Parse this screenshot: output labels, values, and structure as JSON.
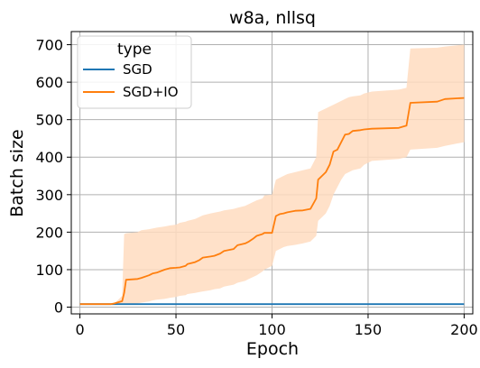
{
  "chart_data": {
    "type": "line",
    "title": "w8a, nllsq",
    "xlabel": "Epoch",
    "ylabel": "Batch size",
    "xlim": [
      -4.5,
      204.5
    ],
    "ylim": [
      -18,
      735
    ],
    "xticks": [
      0,
      50,
      100,
      150,
      200
    ],
    "yticks": [
      0,
      100,
      200,
      300,
      400,
      500,
      600,
      700
    ],
    "grid": true,
    "legend": {
      "title": "type",
      "placement": "top-left"
    },
    "series": [
      {
        "name": "SGD",
        "color": "#1f77b4",
        "x": [
          0,
          200
        ],
        "y": [
          8,
          8
        ]
      },
      {
        "name": "SGD+IO",
        "color": "#ff7f0e",
        "band_color": "#ffdcc0",
        "x": [
          0,
          16,
          18,
          22,
          23,
          24,
          30,
          32,
          36,
          38,
          40,
          44,
          47,
          50,
          52,
          55,
          56,
          60,
          62,
          64,
          68,
          70,
          73,
          75,
          80,
          82,
          86,
          88,
          90,
          92,
          95,
          96,
          100,
          102,
          104,
          106,
          108,
          112,
          116,
          120,
          123,
          124,
          126,
          128,
          130,
          132,
          134,
          136,
          138,
          140,
          142,
          146,
          148,
          152,
          166,
          170,
          172,
          186,
          190,
          200
        ],
        "y": [
          8,
          8,
          10,
          16,
          38,
          73,
          75,
          78,
          85,
          90,
          92,
          100,
          104,
          105,
          106,
          110,
          115,
          120,
          125,
          132,
          135,
          137,
          143,
          150,
          155,
          165,
          170,
          175,
          182,
          190,
          195,
          198,
          198,
          243,
          248,
          250,
          253,
          257,
          258,
          262,
          290,
          340,
          350,
          360,
          380,
          415,
          420,
          440,
          460,
          462,
          470,
          472,
          474,
          476,
          478,
          484,
          545,
          548,
          555,
          558
        ],
        "upper": [
          8,
          8,
          10,
          30,
          195,
          197,
          200,
          205,
          208,
          210,
          212,
          215,
          218,
          220,
          225,
          228,
          230,
          235,
          240,
          245,
          250,
          252,
          255,
          258,
          262,
          265,
          270,
          275,
          280,
          285,
          290,
          298,
          300,
          340,
          345,
          350,
          355,
          360,
          365,
          370,
          400,
          520,
          525,
          530,
          535,
          540,
          545,
          550,
          555,
          560,
          562,
          565,
          570,
          575,
          580,
          585,
          690,
          692,
          695,
          700
        ],
        "lower": [
          8,
          8,
          8,
          8,
          8,
          8,
          10,
          12,
          15,
          18,
          20,
          22,
          25,
          27,
          30,
          32,
          35,
          38,
          40,
          42,
          45,
          48,
          50,
          55,
          60,
          65,
          70,
          75,
          80,
          85,
          95,
          100,
          110,
          150,
          155,
          160,
          163,
          166,
          170,
          175,
          190,
          230,
          240,
          250,
          270,
          300,
          320,
          340,
          355,
          360,
          365,
          370,
          380,
          390,
          395,
          400,
          420,
          425,
          430,
          440
        ]
      }
    ]
  }
}
